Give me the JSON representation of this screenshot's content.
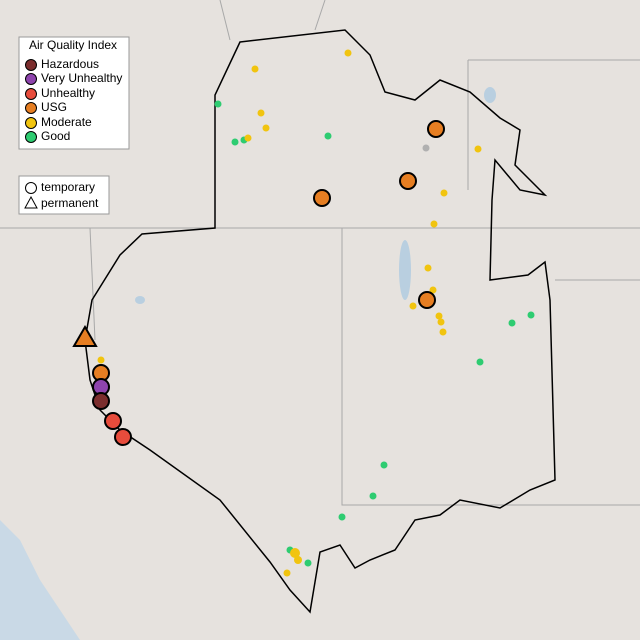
{
  "legend": {
    "title": "Air Quality Index",
    "categories": [
      "Hazardous",
      "Very Unhealthy",
      "Unhealthy",
      "USG",
      "Moderate",
      "Good"
    ],
    "shapes": [
      "temporary",
      "permanent"
    ]
  }
}
